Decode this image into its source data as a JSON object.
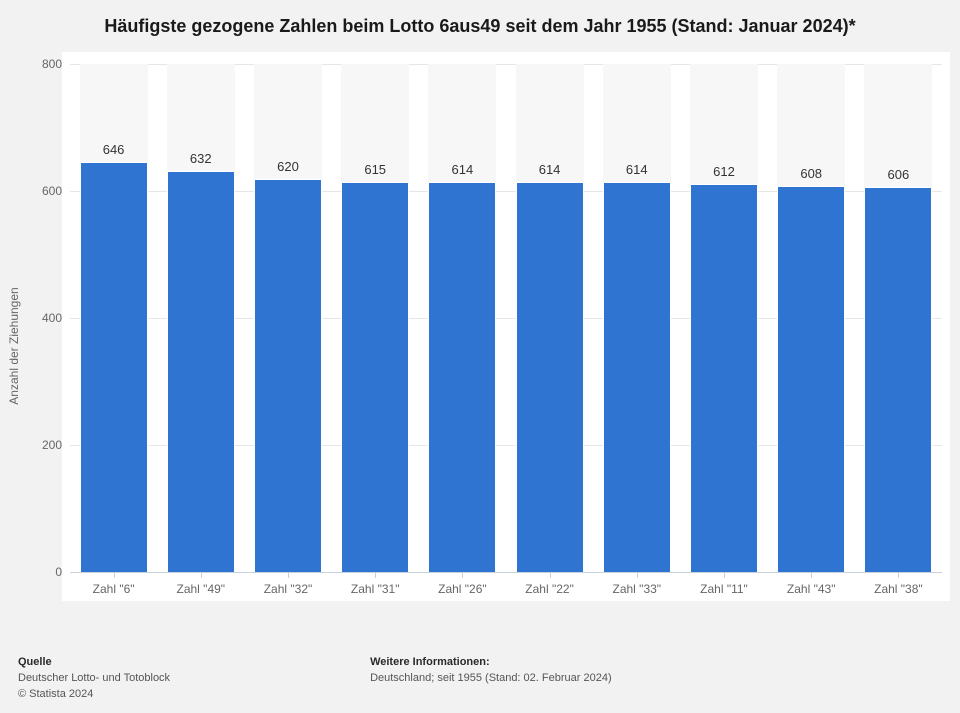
{
  "title": "Häufigste gezogene Zahlen beim Lotto 6aus49 seit dem Jahr 1955 (Stand: Januar 2024)*",
  "chart": {
    "type": "bar",
    "ylabel": "Anzahl der Ziehungen",
    "ylim": [
      0,
      800
    ],
    "yticks": [
      0,
      200,
      400,
      600,
      800
    ],
    "categories": [
      "Zahl \"6\"",
      "Zahl \"49\"",
      "Zahl \"32\"",
      "Zahl \"31\"",
      "Zahl \"26\"",
      "Zahl \"22\"",
      "Zahl \"33\"",
      "Zahl \"11\"",
      "Zahl \"43\"",
      "Zahl \"38\""
    ],
    "values": [
      646,
      632,
      620,
      615,
      614,
      614,
      614,
      612,
      608,
      606
    ],
    "bar_color": "#2f74d0",
    "bar_bg_color": "#f7f7f7",
    "grid_color": "#e6e6e6",
    "axis_color": "#c8d0dc",
    "plot_background": "#ffffff",
    "page_background": "#f2f2f2",
    "bar_width_ratio": 0.78,
    "value_label_fontsize": 13,
    "tick_label_fontsize": 12,
    "title_fontsize": 18
  },
  "footer": {
    "source": {
      "heading": "Quelle",
      "line1": "Deutscher Lotto- und Totoblock",
      "line2": "© Statista 2024"
    },
    "info": {
      "heading": "Weitere Informationen:",
      "line1": "Deutschland; seit 1955 (Stand: 02. Februar 2024)"
    }
  }
}
